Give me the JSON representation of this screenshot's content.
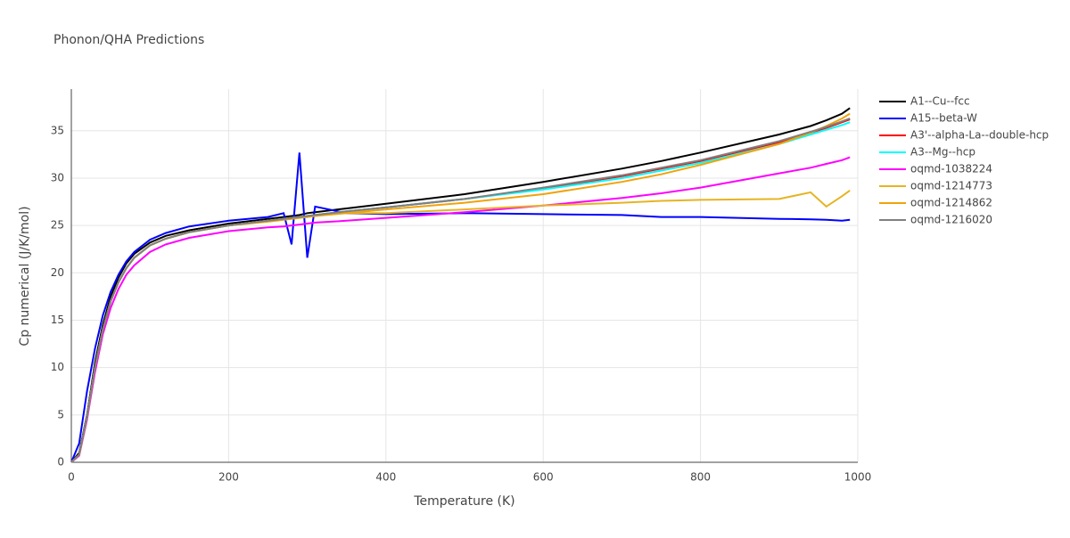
{
  "chart_data": {
    "type": "line",
    "title": "Phonon/QHA Predictions",
    "x_label": "Temperature (K)",
    "y_label": "Cp numerical (J/K/mol)",
    "x": [
      0,
      10,
      20,
      30,
      40,
      50,
      60,
      70,
      80,
      100,
      120,
      150,
      200,
      250,
      270,
      280,
      290,
      300,
      310,
      350,
      400,
      500,
      600,
      700,
      750,
      800,
      900,
      940,
      960,
      980,
      990
    ],
    "series": [
      {
        "name": "A1--Cu--fcc",
        "color": "#000000",
        "values": [
          0,
          1,
          5,
          10.5,
          14.5,
          17.5,
          19.5,
          21,
          22,
          23.2,
          23.9,
          24.5,
          25.2,
          25.7,
          25.9,
          26,
          26.1,
          26.3,
          26.4,
          26.8,
          27.3,
          28.3,
          29.6,
          31,
          31.8,
          32.7,
          34.6,
          35.5,
          36.1,
          36.8,
          37.4
        ]
      },
      {
        "name": "A15--beta-W",
        "color": "#0000ff",
        "values": [
          0,
          2,
          7.5,
          12,
          15.5,
          18,
          19.8,
          21.2,
          22.2,
          23.5,
          24.2,
          24.9,
          25.5,
          25.9,
          26.3,
          23,
          32.7,
          21.6,
          27,
          26.3,
          26.2,
          26.3,
          26.2,
          26.1,
          25.9,
          25.9,
          25.7,
          25.65,
          25.6,
          25.5,
          25.6
        ]
      },
      {
        "name": "A3'--alpha-La--double-hcp",
        "color": "#ff0000",
        "values": [
          0,
          0.8,
          4.8,
          10,
          14,
          17,
          19,
          20.5,
          21.6,
          22.9,
          23.6,
          24.3,
          25,
          25.5,
          25.7,
          25.8,
          25.9,
          26,
          26.1,
          26.5,
          26.9,
          27.8,
          28.9,
          30.2,
          31,
          31.8,
          33.8,
          34.8,
          35.3,
          35.9,
          36.2
        ]
      },
      {
        "name": "A3--Mg--hcp",
        "color": "#00ffff",
        "values": [
          0,
          0.8,
          4.8,
          10,
          14,
          17,
          19,
          20.5,
          21.6,
          22.9,
          23.6,
          24.3,
          25,
          25.5,
          25.7,
          25.8,
          25.9,
          26,
          26.1,
          26.5,
          26.9,
          27.8,
          28.8,
          30,
          30.8,
          31.6,
          33.6,
          34.6,
          35.1,
          35.6,
          35.9
        ]
      },
      {
        "name": "oqmd-1038224",
        "color": "#ff00ff",
        "values": [
          0,
          0.7,
          4.5,
          9.5,
          13.5,
          16.3,
          18.3,
          19.8,
          20.8,
          22.2,
          23,
          23.7,
          24.4,
          24.8,
          24.9,
          25,
          25.1,
          25.2,
          25.3,
          25.5,
          25.8,
          26.4,
          27.1,
          27.9,
          28.4,
          29,
          30.5,
          31.1,
          31.5,
          31.9,
          32.2
        ]
      },
      {
        "name": "oqmd-1214773",
        "color": "#e6b422",
        "values": [
          0,
          0.8,
          4.8,
          10,
          14,
          17,
          19,
          20.5,
          21.6,
          22.9,
          23.6,
          24.3,
          25,
          25.5,
          25.7,
          25.8,
          25.9,
          26,
          26.1,
          26.3,
          26.3,
          26.7,
          27.1,
          27.4,
          27.6,
          27.7,
          27.8,
          28.5,
          27,
          28.1,
          28.7
        ]
      },
      {
        "name": "oqmd-1214862",
        "color": "#f0a30a",
        "values": [
          0,
          0.8,
          4.8,
          10,
          14,
          17,
          19,
          20.5,
          21.6,
          22.9,
          23.6,
          24.3,
          25,
          25.4,
          25.6,
          25.7,
          25.8,
          25.9,
          26,
          26.3,
          26.7,
          27.4,
          28.3,
          29.6,
          30.4,
          31.4,
          33.6,
          34.8,
          35.5,
          36.3,
          36.8
        ]
      },
      {
        "name": "oqmd-1216020",
        "color": "#808080",
        "values": [
          0,
          0.8,
          4.8,
          10,
          14,
          17,
          19,
          20.5,
          21.6,
          22.9,
          23.6,
          24.3,
          25,
          25.5,
          25.7,
          25.8,
          25.9,
          26,
          26.1,
          26.5,
          26.9,
          27.8,
          29,
          30.3,
          31.1,
          31.9,
          33.9,
          34.9,
          35.4,
          36,
          36.3
        ]
      }
    ],
    "xlim": [
      0,
      1000
    ],
    "ylim": [
      0,
      39.4
    ],
    "xticks": [
      0,
      200,
      400,
      600,
      800,
      1000
    ],
    "yticks": [
      0,
      5,
      10,
      15,
      20,
      25,
      30,
      35
    ],
    "grid": true
  }
}
